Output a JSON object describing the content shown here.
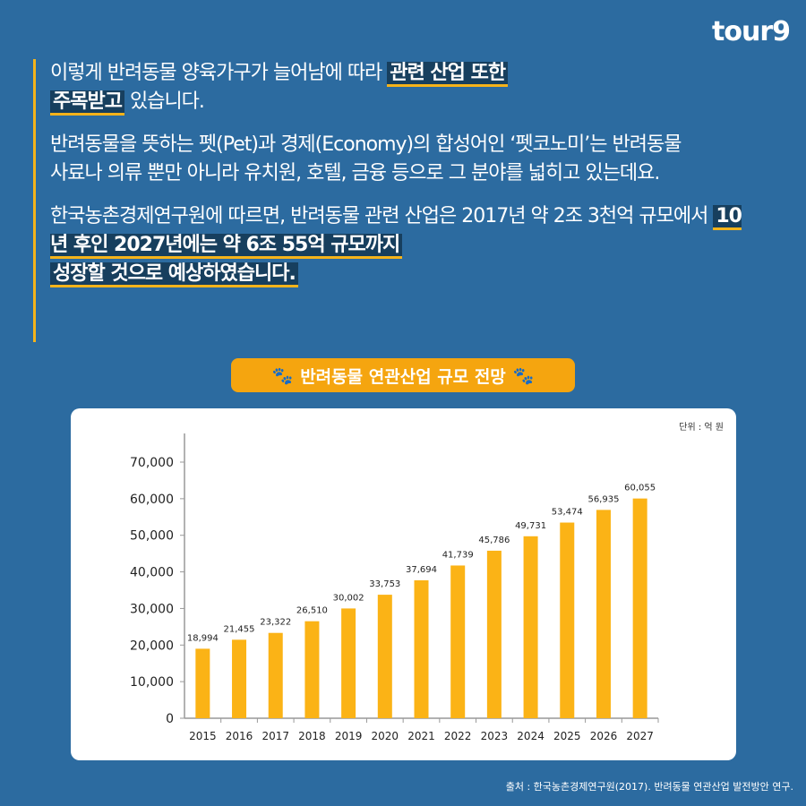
{
  "logo": "tour9",
  "paragraphs": {
    "p1_plain": "이렇게 반려동물 양육가구가 늘어남에 따라 ",
    "p1_hl1": "관련 산업 또한",
    "p1_hl2": "주목받고",
    "p1_tail": " 있습니다.",
    "p2": "반려동물을 뜻하는 펫(Pet)과 경제(Economy)의 합성어인 ‘펫코노미’는 반려동물 사료나 의류 뿐만 아니라 유치원, 호텔, 금융 등으로 그 분야를 넓히고 있는데요.",
    "p3_plain": "한국농촌경제연구원에 따르면, 반려동물 관련 산업은 2017년 약 2조 3천억 규모에서 ",
    "p3_hl1": "10년 후인 2027년에는 약 6조 55억 규모까지",
    "p3_hl2": "성장할 것으로 예상하였습니다."
  },
  "chart_title": "반려동물 연관산업 규모 전망",
  "chart_title_icon": "paw-icon",
  "unit": "단위 : 억 원",
  "source": "출처 : 한국농촌경제연구원(2017). 반려동물 연관산업 발전방안 연구.",
  "chart_data": {
    "type": "bar",
    "categories": [
      "2015",
      "2016",
      "2017",
      "2018",
      "2019",
      "2020",
      "2021",
      "2022",
      "2023",
      "2024",
      "2025",
      "2026",
      "2027"
    ],
    "values": [
      18994,
      21455,
      23322,
      26510,
      30002,
      33753,
      37694,
      41739,
      45786,
      49731,
      53474,
      56935,
      60055
    ],
    "data_labels": [
      "18,994",
      "21,455",
      "23,322",
      "26,510",
      "30,002",
      "33,753",
      "37,694",
      "41,739",
      "45,786",
      "49,731",
      "53,474",
      "56,935",
      "60,055"
    ],
    "yticks": [
      "0",
      "10,000",
      "20,000",
      "30,000",
      "40,000",
      "50,000",
      "60,000",
      "70,000"
    ],
    "ylim": [
      0,
      70000
    ],
    "bar_color": "#fbb316",
    "grid": false
  },
  "colors": {
    "background": "#2c6ba0",
    "accent": "#f5b31a",
    "highlight": "#173f5e"
  }
}
